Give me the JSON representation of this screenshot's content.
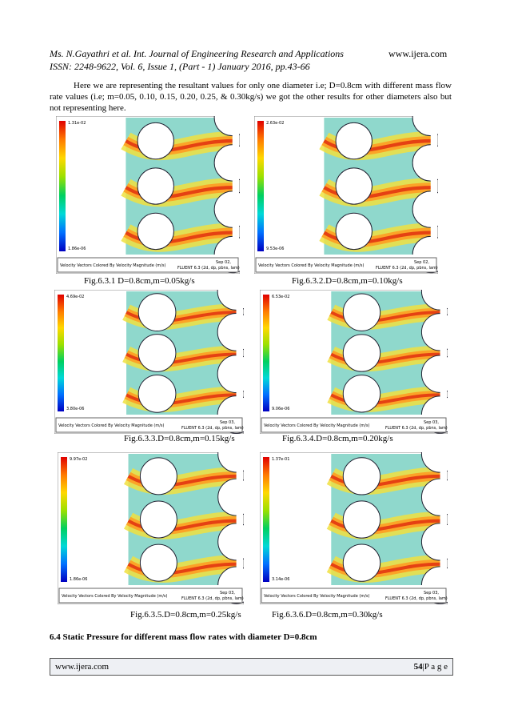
{
  "header": {
    "citation": "Ms. N.Gayathri et al. Int. Journal of Engineering Research and Applications",
    "site": "www.ijera.com",
    "issn": "ISSN: 2248-9622, Vol. 6, Issue 1, (Part - 1) January 2016, pp.43-66"
  },
  "paragraph": "Here we are representing the resultant values for only one diameter i.e; D=0.8cm with different mass flow rate values (i.e; m=0.05, 0.10, 0.15, 0.20, 0.25, & 0.30kg/s) we got the other results for other diameters also but not representing here.",
  "figures": [
    {
      "max": "1.31e-02",
      "min": "1.86e-06",
      "plot_title": "Velocity Vectors Colored By Velocity Magnitude (m/s)",
      "date": "Sep 02,",
      "solver": "FLUENT 6.3 (2d, dp, pbns, lam)",
      "caption": "Fig.6.3.1 D=0.8cm,m=0.05kg/s"
    },
    {
      "max": "2.63e-02",
      "min": "9.53e-06",
      "plot_title": "Velocity Vectors Colored By Velocity Magnitude (m/s)",
      "date": "Sep 02,",
      "solver": "FLUENT 6.3 (2d, dp, pbns, lam)",
      "caption": "Fig.6.3.2.D=0.8cm,m=0.10kg/s"
    },
    {
      "max": "4.69e-02",
      "min": "3.80e-06",
      "plot_title": "Velocity Vectors Colored By Velocity Magnitude (m/s)",
      "date": "Sep 03,",
      "solver": "FLUENT 6.3 (2d, dp, pbns, lam)",
      "caption": "Fig.6.3.3.D=0.8cm,m=0.15kg/s"
    },
    {
      "max": "6.53e-02",
      "min": "9.06e-06",
      "plot_title": "Velocity Vectors Colored By Velocity Magnitude (m/s)",
      "date": "Sep 03,",
      "solver": "FLUENT 6.3 (2d, dp, pbns, lam)",
      "caption": "Fig.6.3.4.D=0.8cm,m=0.20kg/s"
    },
    {
      "max": "9.97e-02",
      "min": "1.86e-06",
      "plot_title": "Velocity Vectors Colored By Velocity Magnitude (m/s)",
      "date": "Sep 03,",
      "solver": "FLUENT 6.3 (2d, dp, pbns, lam)",
      "caption": "Fig.6.3.5.D=0.8cm,m=0.25kg/s"
    },
    {
      "max": "1.37e-01",
      "min": "3.14e-06",
      "plot_title": "Velocity Vectors Colored By Velocity Magnitude (m/s)",
      "date": "Sep 03,",
      "solver": "FLUENT 6.3 (2d, dp, pbns, lam)",
      "caption": "Fig.6.3.6.D=0.8cm,m=0.30kg/s"
    }
  ],
  "section_heading": "6.4 Static Pressure for different mass flow rates with diameter D=0.8cm",
  "footer": {
    "site": "www.ijera.com",
    "page_number": "54",
    "page_label": "|P a g e"
  }
}
